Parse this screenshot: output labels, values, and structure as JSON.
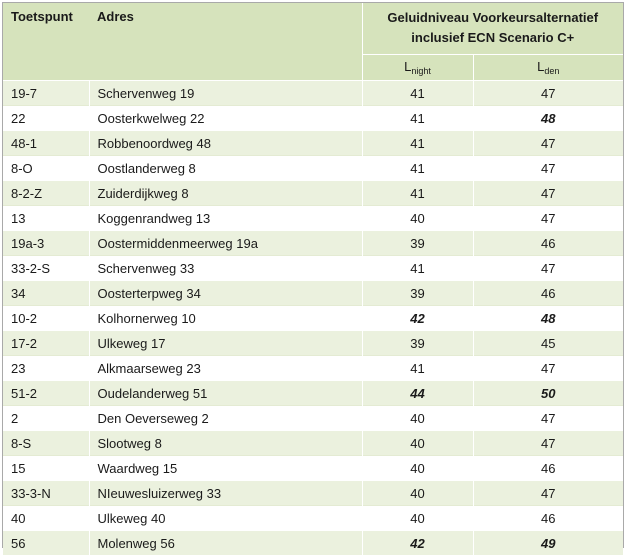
{
  "header": {
    "col_toetspunt": "Toetspunt",
    "col_adres": "Adres",
    "group_line1": "Geluidniveau Voorkeursalternatief",
    "group_line2": "inclusief ECN Scenario C+",
    "lnight_base": "L",
    "lnight_sub": "night",
    "lden_base": "L",
    "lden_sub": "den"
  },
  "rows": [
    {
      "toetspunt": "19-7",
      "adres": "Schervenweg 19",
      "lnight": "41",
      "lden": "47",
      "lnight_bold": false,
      "lden_bold": false
    },
    {
      "toetspunt": "22",
      "adres": "Oosterkwelweg 22",
      "lnight": "41",
      "lden": "48",
      "lnight_bold": false,
      "lden_bold": true
    },
    {
      "toetspunt": "48-1",
      "adres": "Robbenoordweg 48",
      "lnight": "41",
      "lden": "47",
      "lnight_bold": false,
      "lden_bold": false
    },
    {
      "toetspunt": "8-O",
      "adres": "Oostlanderweg 8",
      "lnight": "41",
      "lden": "47",
      "lnight_bold": false,
      "lden_bold": false
    },
    {
      "toetspunt": "8-2-Z",
      "adres": "Zuiderdijkweg 8",
      "lnight": "41",
      "lden": "47",
      "lnight_bold": false,
      "lden_bold": false
    },
    {
      "toetspunt": "13",
      "adres": "Koggenrandweg 13",
      "lnight": "40",
      "lden": "47",
      "lnight_bold": false,
      "lden_bold": false
    },
    {
      "toetspunt": "19a-3",
      "adres": "Oostermiddenmeerweg 19a",
      "lnight": "39",
      "lden": "46",
      "lnight_bold": false,
      "lden_bold": false
    },
    {
      "toetspunt": "33-2-S",
      "adres": "Schervenweg 33",
      "lnight": "41",
      "lden": "47",
      "lnight_bold": false,
      "lden_bold": false
    },
    {
      "toetspunt": "34",
      "adres": "Oosterterpweg 34",
      "lnight": "39",
      "lden": "46",
      "lnight_bold": false,
      "lden_bold": false
    },
    {
      "toetspunt": "10-2",
      "adres": "Kolhornerweg 10",
      "lnight": "42",
      "lden": "48",
      "lnight_bold": true,
      "lden_bold": true
    },
    {
      "toetspunt": "17-2",
      "adres": "Ulkeweg 17",
      "lnight": "39",
      "lden": "45",
      "lnight_bold": false,
      "lden_bold": false
    },
    {
      "toetspunt": "23",
      "adres": "Alkmaarseweg 23",
      "lnight": "41",
      "lden": "47",
      "lnight_bold": false,
      "lden_bold": false
    },
    {
      "toetspunt": "51-2",
      "adres": "Oudelanderweg 51",
      "lnight": "44",
      "lden": "50",
      "lnight_bold": true,
      "lden_bold": true
    },
    {
      "toetspunt": "2",
      "adres": "Den Oeverseweg 2",
      "lnight": "40",
      "lden": "47",
      "lnight_bold": false,
      "lden_bold": false
    },
    {
      "toetspunt": "8-S",
      "adres": "Slootweg 8",
      "lnight": "40",
      "lden": "47",
      "lnight_bold": false,
      "lden_bold": false
    },
    {
      "toetspunt": "15",
      "adres": "Waardweg 15",
      "lnight": "40",
      "lden": "46",
      "lnight_bold": false,
      "lden_bold": false
    },
    {
      "toetspunt": "33-3-N",
      "adres": "NIeuwesluizerweg 33",
      "lnight": "40",
      "lden": "47",
      "lnight_bold": false,
      "lden_bold": false
    },
    {
      "toetspunt": "40",
      "adres": "Ulkeweg 40",
      "lnight": "40",
      "lden": "46",
      "lnight_bold": false,
      "lden_bold": false
    },
    {
      "toetspunt": "56",
      "adres": "Molenweg 56",
      "lnight": "42",
      "lden": "49",
      "lnight_bold": true,
      "lden_bold": true
    }
  ]
}
